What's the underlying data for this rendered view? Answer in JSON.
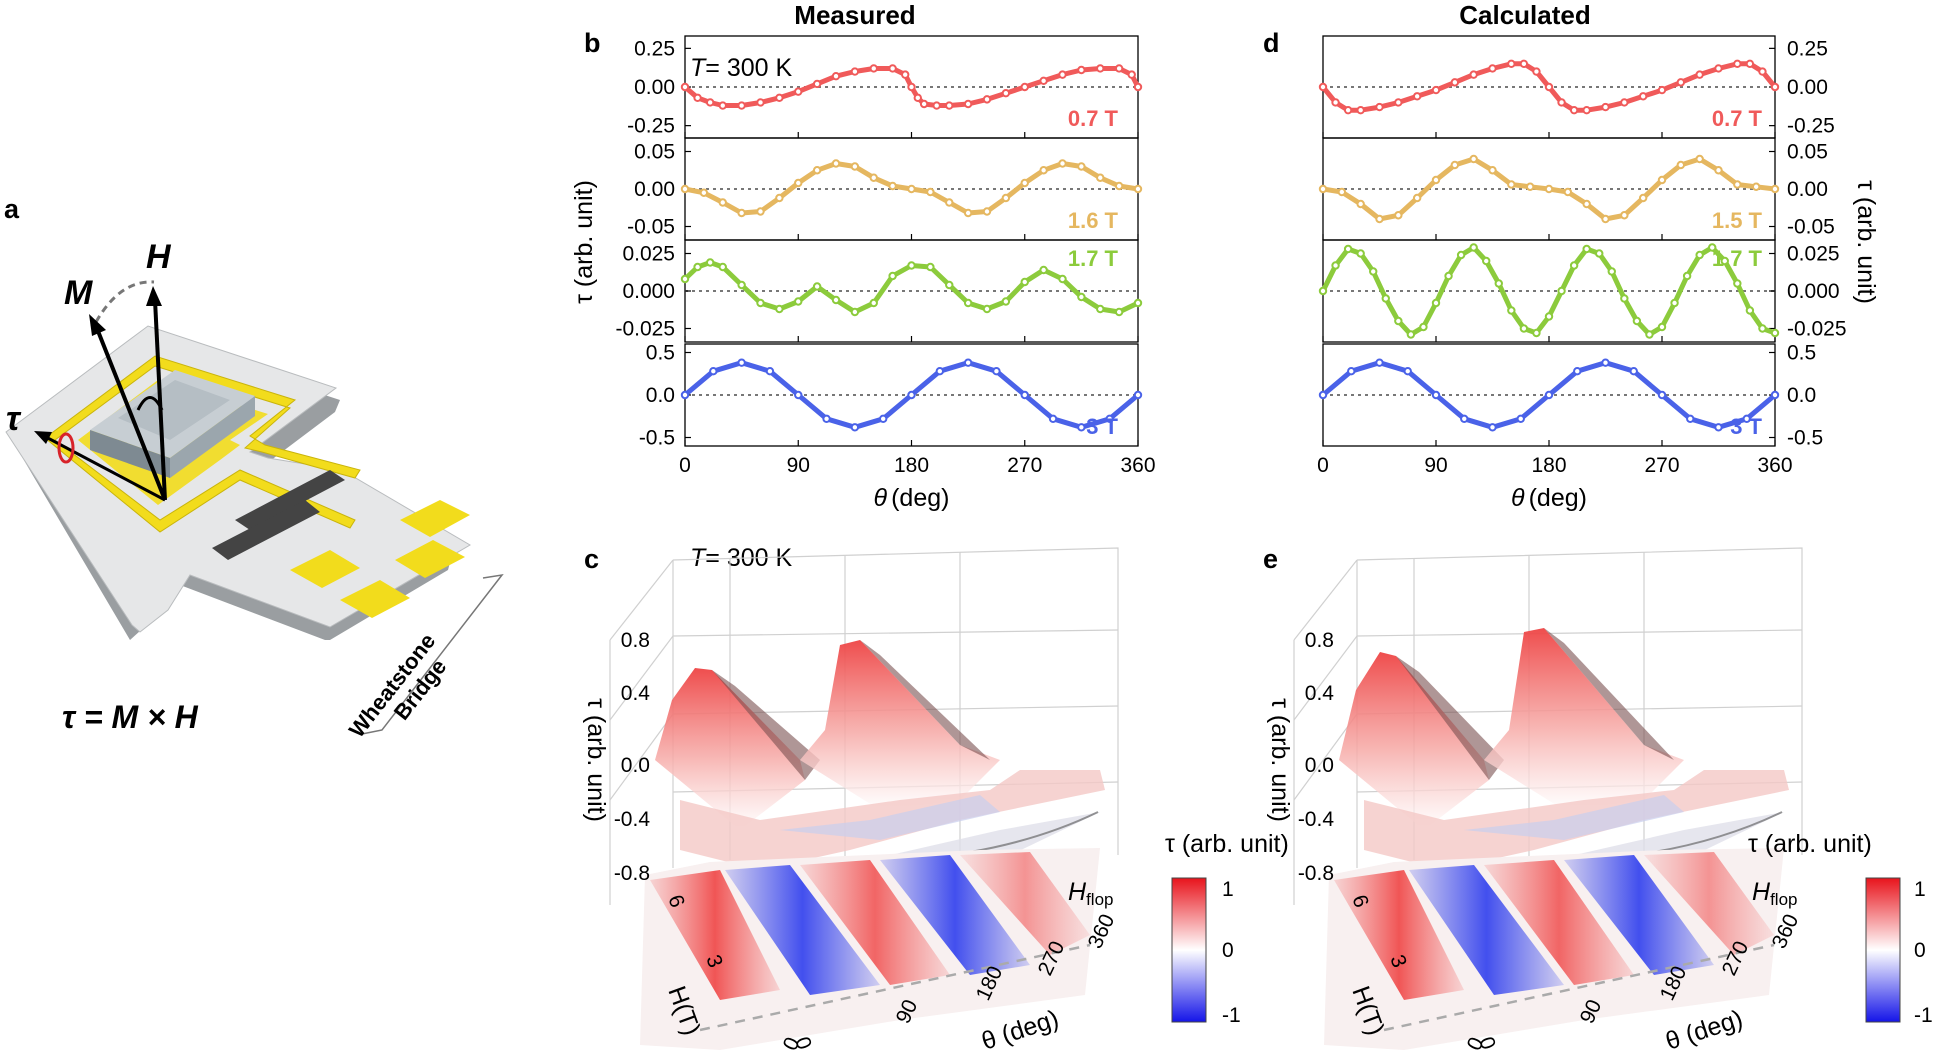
{
  "panel_labels": {
    "a": "a",
    "b": "b",
    "c": "c",
    "d": "d",
    "e": "e"
  },
  "titles": {
    "measured": "Measured",
    "calculated": "Calculated"
  },
  "temperature": {
    "t_symbol": "T",
    "t_value": "= 300 K"
  },
  "schematic": {
    "M": "M",
    "H": "H",
    "tau": "τ",
    "equation": "τ = M × H",
    "bridge_line1": "Wheatstone",
    "bridge_line2": "Bridge"
  },
  "axis_labels": {
    "theta_symbol": "θ",
    "theta_unit": "(deg)",
    "tau_ylabel": "τ (arb. unit)",
    "h_label": "H(T)",
    "theta_3d": "θ (deg)",
    "colorbar_title": "τ (arb. unit)",
    "hflop_main": "H",
    "hflop_sub": "flop"
  },
  "colors": {
    "red": "#f05a5a",
    "orange": "#e5b760",
    "green": "#8ccb3c",
    "blue": "#4a62e8",
    "positive": "#e8242a",
    "negative": "#2a2ae8",
    "gold": "#f2dc1c"
  },
  "chart_data": [
    {
      "type": "line",
      "panel": "b",
      "title": "Measured",
      "xlabel": "θ (deg)",
      "ylabel": "τ (arb. unit)",
      "xlim": [
        0,
        360
      ],
      "xticks": [
        0,
        90,
        180,
        270,
        360
      ],
      "series": [
        {
          "name": "0.7 T",
          "field": 0.7,
          "ylim": [
            -0.33,
            0.33
          ],
          "yticks": [
            "0.25",
            "0.00",
            "-0.25"
          ],
          "ytickvals": [
            0.25,
            0,
            -0.25
          ],
          "theta": [
            0,
            10,
            20,
            30,
            45,
            60,
            75,
            90,
            105,
            120,
            135,
            150,
            165,
            175,
            180,
            185,
            190,
            200,
            210,
            225,
            240,
            255,
            270,
            285,
            300,
            315,
            330,
            345,
            355,
            360
          ],
          "tau": [
            0.0,
            -0.07,
            -0.1,
            -0.12,
            -0.12,
            -0.1,
            -0.07,
            -0.03,
            0.02,
            0.07,
            0.1,
            0.12,
            0.12,
            0.08,
            0.0,
            -0.07,
            -0.11,
            -0.12,
            -0.12,
            -0.11,
            -0.08,
            -0.04,
            0.0,
            0.04,
            0.08,
            0.11,
            0.12,
            0.12,
            0.08,
            0.0
          ]
        },
        {
          "name": "1.6 T",
          "field": 1.6,
          "ylim": [
            -0.068,
            0.068
          ],
          "yticks": [
            "0.05",
            "0.00",
            "-0.05"
          ],
          "ytickvals": [
            0.05,
            0,
            -0.05
          ],
          "theta": [
            0,
            15,
            30,
            45,
            60,
            75,
            90,
            105,
            120,
            135,
            150,
            165,
            180,
            195,
            210,
            225,
            240,
            255,
            270,
            285,
            300,
            315,
            330,
            345,
            360
          ],
          "tau": [
            0.0,
            -0.005,
            -0.018,
            -0.032,
            -0.03,
            -0.012,
            0.008,
            0.025,
            0.034,
            0.03,
            0.015,
            0.004,
            0.0,
            -0.004,
            -0.018,
            -0.032,
            -0.03,
            -0.012,
            0.008,
            0.025,
            0.034,
            0.03,
            0.015,
            0.004,
            0.0
          ]
        },
        {
          "name": "1.7 T",
          "field": 1.7,
          "ylim": [
            -0.034,
            0.034
          ],
          "yticks": [
            "0.025",
            "0.000",
            "-0.025"
          ],
          "ytickvals": [
            0.025,
            0,
            -0.025
          ],
          "theta": [
            0,
            10,
            20,
            30,
            45,
            60,
            75,
            90,
            105,
            120,
            135,
            150,
            165,
            180,
            195,
            210,
            225,
            240,
            255,
            270,
            285,
            300,
            315,
            330,
            345,
            360
          ],
          "tau": [
            0.008,
            0.016,
            0.019,
            0.016,
            0.004,
            -0.008,
            -0.012,
            -0.007,
            0.003,
            -0.006,
            -0.014,
            -0.008,
            0.01,
            0.017,
            0.016,
            0.004,
            -0.008,
            -0.012,
            -0.007,
            0.006,
            0.014,
            0.008,
            -0.004,
            -0.012,
            -0.014,
            -0.008
          ]
        },
        {
          "name": "3 T",
          "field": 3,
          "ylim": [
            -0.6,
            0.6
          ],
          "yticks": [
            "0.5",
            "0.0",
            "-0.5"
          ],
          "ytickvals": [
            0.5,
            0,
            -0.5
          ],
          "theta": [
            0,
            22.5,
            45,
            67.5,
            90,
            112.5,
            135,
            157.5,
            180,
            202.5,
            225,
            247.5,
            270,
            292.5,
            315,
            337.5,
            360
          ],
          "tau": [
            0.0,
            0.28,
            0.38,
            0.28,
            0.0,
            -0.28,
            -0.38,
            -0.28,
            0.0,
            0.28,
            0.38,
            0.28,
            0.0,
            -0.28,
            -0.38,
            -0.28,
            0.0
          ]
        }
      ]
    },
    {
      "type": "line",
      "panel": "d",
      "title": "Calculated",
      "xlabel": "θ (deg)",
      "ylabel": "τ (arb. unit)",
      "xlim": [
        0,
        360
      ],
      "xticks": [
        0,
        90,
        180,
        270,
        360
      ],
      "series": [
        {
          "name": "0.7 T",
          "field": 0.7,
          "ylim": [
            -0.33,
            0.33
          ],
          "yticks": [
            "0.25",
            "0.00",
            "-0.25"
          ],
          "ytickvals": [
            0.25,
            0,
            -0.25
          ],
          "theta": [
            0,
            10,
            20,
            30,
            45,
            60,
            75,
            90,
            105,
            120,
            135,
            150,
            160,
            170,
            180,
            190,
            200,
            210,
            225,
            240,
            255,
            270,
            285,
            300,
            315,
            330,
            340,
            350,
            360
          ],
          "tau": [
            0.0,
            -0.1,
            -0.15,
            -0.15,
            -0.13,
            -0.1,
            -0.06,
            -0.02,
            0.03,
            0.08,
            0.12,
            0.15,
            0.15,
            0.1,
            0.0,
            -0.1,
            -0.15,
            -0.15,
            -0.13,
            -0.1,
            -0.06,
            -0.02,
            0.03,
            0.08,
            0.12,
            0.15,
            0.15,
            0.1,
            0.0
          ]
        },
        {
          "name": "1.5 T",
          "field": 1.5,
          "ylim": [
            -0.068,
            0.068
          ],
          "yticks": [
            "0.05",
            "0.00",
            "-0.05"
          ],
          "ytickvals": [
            0.05,
            0,
            -0.05
          ],
          "theta": [
            0,
            15,
            30,
            45,
            60,
            75,
            90,
            105,
            120,
            135,
            150,
            165,
            180,
            195,
            210,
            225,
            240,
            255,
            270,
            285,
            300,
            315,
            330,
            345,
            360
          ],
          "tau": [
            0.0,
            -0.004,
            -0.02,
            -0.04,
            -0.035,
            -0.012,
            0.012,
            0.032,
            0.04,
            0.025,
            0.006,
            0.003,
            0.0,
            -0.004,
            -0.02,
            -0.04,
            -0.035,
            -0.012,
            0.012,
            0.032,
            0.04,
            0.025,
            0.006,
            0.003,
            0.0
          ]
        },
        {
          "name": "1.7 T",
          "field": 1.7,
          "ylim": [
            -0.034,
            0.034
          ],
          "yticks": [
            "0.025",
            "0.000",
            "-0.025"
          ],
          "ytickvals": [
            0.025,
            0,
            -0.025
          ],
          "theta": [
            0,
            10,
            20,
            30,
            40,
            50,
            60,
            70,
            80,
            90,
            100,
            110,
            120,
            130,
            140,
            150,
            160,
            170,
            180,
            190,
            200,
            210,
            220,
            230,
            240,
            250,
            260,
            270,
            280,
            290,
            300,
            310,
            320,
            330,
            340,
            350,
            360
          ],
          "tau": [
            0.0,
            0.017,
            0.028,
            0.025,
            0.013,
            -0.005,
            -0.02,
            -0.029,
            -0.024,
            -0.008,
            0.01,
            0.024,
            0.029,
            0.02,
            0.005,
            -0.013,
            -0.025,
            -0.028,
            -0.017,
            0.0,
            0.017,
            0.028,
            0.025,
            0.013,
            -0.005,
            -0.02,
            -0.029,
            -0.024,
            -0.008,
            0.01,
            0.024,
            0.029,
            0.02,
            0.005,
            -0.013,
            -0.025,
            -0.028
          ]
        },
        {
          "name": "3 T",
          "field": 3,
          "ylim": [
            -0.6,
            0.6
          ],
          "yticks": [
            "0.5",
            "0.0",
            "-0.5"
          ],
          "ytickvals": [
            0.5,
            0,
            -0.5
          ],
          "theta": [
            0,
            22.5,
            45,
            67.5,
            90,
            112.5,
            135,
            157.5,
            180,
            202.5,
            225,
            247.5,
            270,
            292.5,
            315,
            337.5,
            360
          ],
          "tau": [
            0.0,
            0.28,
            0.38,
            0.28,
            0.0,
            -0.28,
            -0.38,
            -0.28,
            0.0,
            0.28,
            0.38,
            0.28,
            0.0,
            -0.28,
            -0.38,
            -0.28,
            0.0
          ]
        }
      ]
    },
    {
      "type": "surface3d",
      "panel": "c",
      "title": "T = 300 K",
      "xlabel": "θ (deg)",
      "ylabel": "H(T)",
      "zlabel": "τ (arb. unit)",
      "theta_ticks": [
        "0",
        "90",
        "180",
        "270",
        "360"
      ],
      "h_ticks": [
        "0",
        "3",
        "6"
      ],
      "z_ticks": [
        "0.8",
        "0.4",
        "0.0",
        "-0.4",
        "-0.8"
      ],
      "colorbar": {
        "label": "τ (arb. unit)",
        "ticks": [
          "1",
          "0",
          "-1"
        ],
        "range": [
          -1,
          1
        ]
      }
    },
    {
      "type": "surface3d",
      "panel": "e",
      "title": "",
      "xlabel": "θ (deg)",
      "ylabel": "H(T)",
      "zlabel": "τ (arb. unit)",
      "theta_ticks": [
        "0",
        "90",
        "180",
        "270",
        "360"
      ],
      "h_ticks": [
        "0",
        "3",
        "6"
      ],
      "z_ticks": [
        "0.8",
        "0.4",
        "0.0",
        "-0.4",
        "-0.8"
      ],
      "colorbar": {
        "label": "τ (arb. unit)",
        "ticks": [
          "1",
          "0",
          "-1"
        ],
        "range": [
          -1,
          1
        ]
      }
    }
  ]
}
